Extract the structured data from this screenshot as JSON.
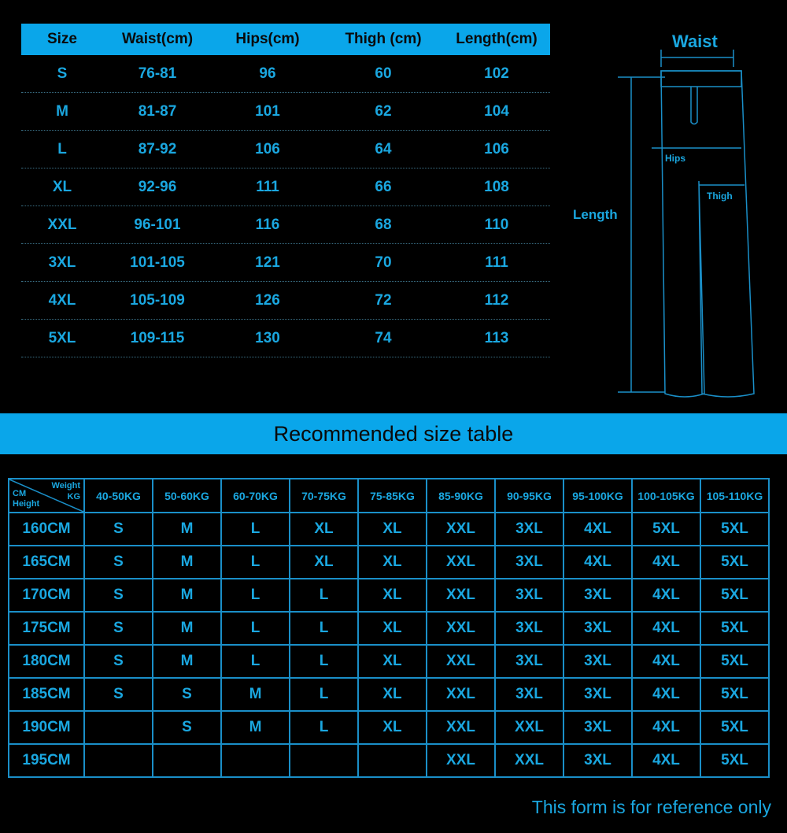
{
  "size_table": {
    "headers": [
      "Size",
      "Waist(cm)",
      "Hips(cm)",
      "Thigh (cm)",
      "Length(cm)"
    ],
    "rows": [
      [
        "S",
        "76-81",
        "96",
        "60",
        "102"
      ],
      [
        "M",
        "81-87",
        "101",
        "62",
        "104"
      ],
      [
        "L",
        "87-92",
        "106",
        "64",
        "106"
      ],
      [
        "XL",
        "92-96",
        "111",
        "66",
        "108"
      ],
      [
        "XXL",
        "96-101",
        "116",
        "68",
        "110"
      ],
      [
        "3XL",
        "101-105",
        "121",
        "70",
        "111"
      ],
      [
        "4XL",
        "105-109",
        "126",
        "72",
        "112"
      ],
      [
        "5XL",
        "109-115",
        "130",
        "74",
        "113"
      ]
    ]
  },
  "diagram": {
    "waist": "Waist",
    "hips": "Hips",
    "thigh": "Thigh",
    "length": "Length"
  },
  "banner": "Recommended size table",
  "rec_table": {
    "corner": {
      "weight": "Weight",
      "kg": "KG",
      "cm": "CM",
      "height": "Height"
    },
    "weights": [
      "40-50KG",
      "50-60KG",
      "60-70KG",
      "70-75KG",
      "75-85KG",
      "85-90KG",
      "90-95KG",
      "95-100KG",
      "100-105KG",
      "105-110KG"
    ],
    "rows": [
      {
        "height": "160CM",
        "sizes": [
          "S",
          "M",
          "L",
          "XL",
          "XL",
          "XXL",
          "3XL",
          "4XL",
          "5XL",
          "5XL"
        ]
      },
      {
        "height": "165CM",
        "sizes": [
          "S",
          "M",
          "L",
          "XL",
          "XL",
          "XXL",
          "3XL",
          "4XL",
          "4XL",
          "5XL"
        ]
      },
      {
        "height": "170CM",
        "sizes": [
          "S",
          "M",
          "L",
          "L",
          "XL",
          "XXL",
          "3XL",
          "3XL",
          "4XL",
          "5XL"
        ]
      },
      {
        "height": "175CM",
        "sizes": [
          "S",
          "M",
          "L",
          "L",
          "XL",
          "XXL",
          "3XL",
          "3XL",
          "4XL",
          "5XL"
        ]
      },
      {
        "height": "180CM",
        "sizes": [
          "S",
          "M",
          "L",
          "L",
          "XL",
          "XXL",
          "3XL",
          "3XL",
          "4XL",
          "5XL"
        ]
      },
      {
        "height": "185CM",
        "sizes": [
          "S",
          "S",
          "M",
          "L",
          "XL",
          "XXL",
          "3XL",
          "3XL",
          "4XL",
          "5XL"
        ]
      },
      {
        "height": "190CM",
        "sizes": [
          "",
          "S",
          "M",
          "L",
          "XL",
          "XXL",
          "XXL",
          "3XL",
          "4XL",
          "5XL"
        ]
      },
      {
        "height": "195CM",
        "sizes": [
          "",
          "",
          "",
          "",
          "",
          "XXL",
          "XXL",
          "3XL",
          "4XL",
          "5XL"
        ]
      }
    ]
  },
  "note": "This form is for reference only",
  "colors": {
    "accent": "#0aa6ea",
    "text": "#1aa7e0",
    "background": "#000000"
  }
}
